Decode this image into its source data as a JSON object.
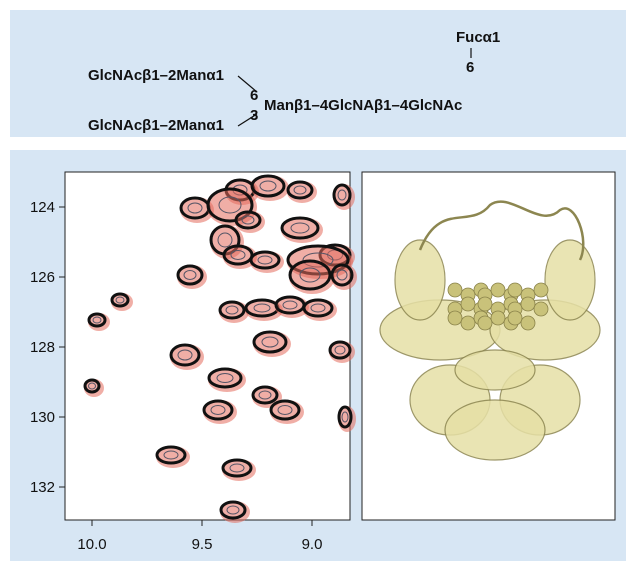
{
  "glycan": {
    "branch_upper": "GlcNAcβ1–2Manα1",
    "branch_lower": "GlcNAcβ1–2Manα1",
    "link_upper": "6",
    "link_lower": "3",
    "core": "Manβ1–4GlcNAβ1–4GlcNAc",
    "fucose": "Fucα1",
    "fucose_link": "6"
  },
  "spectrum": {
    "yticks": [
      "124",
      "126",
      "128",
      "130",
      "132"
    ],
    "xticks": [
      "10.0",
      "9.5",
      "9.0"
    ]
  }
}
